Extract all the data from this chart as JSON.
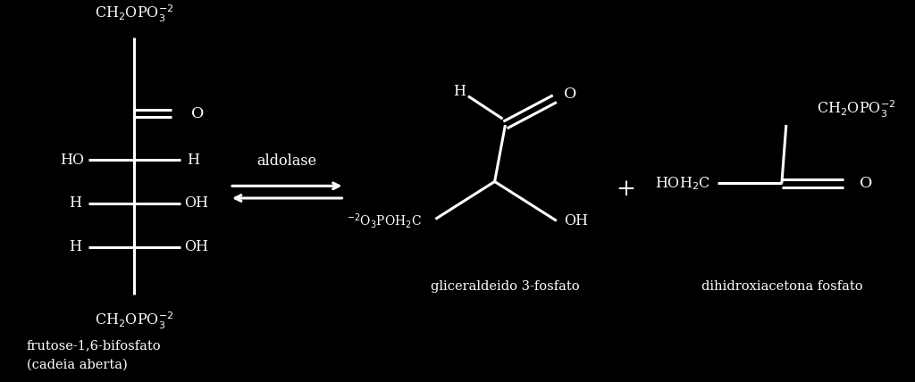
{
  "bg_color": "#000000",
  "text_color": "#ffffff",
  "figsize": [
    10.24,
    4.28
  ],
  "dpi": 100,
  "fructose_label_line1": "frutose-1,6-bifosfato",
  "fructose_label_line2": "(cadeia aberta)",
  "gap_label": "gliceraldeido 3-fosfato",
  "dhap_label": "dihidroxiacetona fosfato",
  "aldolase_label": "aldolase",
  "plus_sign": "+",
  "font_size_main": 13,
  "font_size_small": 11.5,
  "line_width": 2.2,
  "arrow_lw": 2.0
}
